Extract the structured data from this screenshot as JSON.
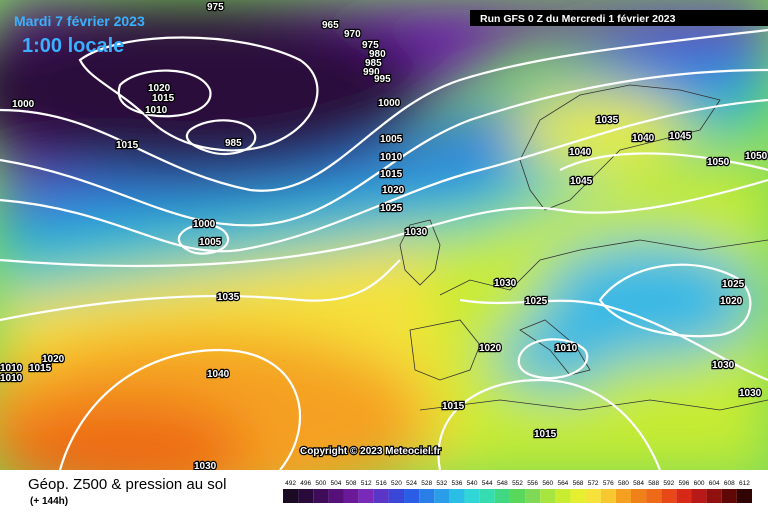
{
  "header": {
    "date": "Mardi 7 février 2023",
    "time": "1:00 locale",
    "run": "Run GFS 0 Z du Mercredi 1 février 2023"
  },
  "copyright": "Copyright © 2023 Meteociel.fr",
  "footer": {
    "title": "Géop. Z500 & pression au sol",
    "lead": "(+ 144h)"
  },
  "legend": {
    "ticks": [
      492,
      496,
      500,
      504,
      508,
      512,
      516,
      520,
      524,
      528,
      532,
      536,
      540,
      544,
      548,
      552,
      556,
      560,
      564,
      568,
      572,
      576,
      580,
      584,
      588,
      592,
      596,
      600,
      604,
      608,
      612
    ]
  },
  "isobar_labels": [
    975,
    965,
    970,
    975,
    980,
    985,
    990,
    995,
    1000,
    1000,
    1020,
    1015,
    1010,
    1015,
    985,
    1005,
    1010,
    1015,
    1020,
    1025,
    1000,
    1005,
    1030,
    1035,
    1040,
    1045,
    1050,
    1050,
    1040,
    1045,
    1035,
    1030,
    1025,
    1025,
    1020,
    1020,
    1015,
    1010,
    1010,
    1020,
    1010,
    1040,
    1030,
    1030,
    1015,
    1015,
    1030
  ]
}
